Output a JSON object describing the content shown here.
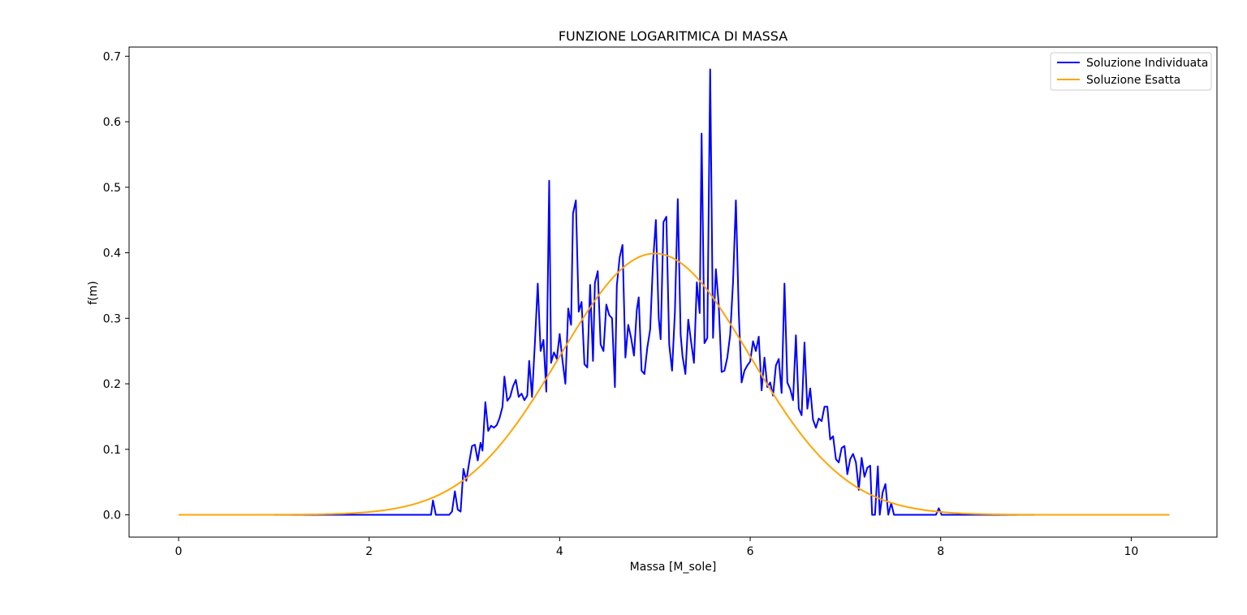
{
  "chart_data": {
    "type": "line",
    "title": "FUNZIONE LOGARITMICA DI MASSA",
    "xlabel": "Massa [M_sole]",
    "ylabel": "f(m)",
    "xlim": [
      -0.52,
      10.9
    ],
    "ylim": [
      -0.034,
      0.714
    ],
    "xticks": [
      0,
      2,
      4,
      6,
      8,
      10
    ],
    "yticks": [
      0.0,
      0.1,
      0.2,
      0.3,
      0.4,
      0.5,
      0.6,
      0.7
    ],
    "xtick_labels": [
      "0",
      "2",
      "4",
      "6",
      "8",
      "10"
    ],
    "ytick_labels": [
      "0.0",
      "0.1",
      "0.2",
      "0.3",
      "0.4",
      "0.5",
      "0.6",
      "0.7"
    ],
    "grid": false,
    "legend_position": "top-right",
    "series": [
      {
        "name": "Soluzione Individuata",
        "color": "#0000ff",
        "points": [
          [
            0.0,
            0.0
          ],
          [
            2.65,
            0.0
          ],
          [
            2.67,
            0.022
          ],
          [
            2.7,
            0.0
          ],
          [
            2.84,
            0.0
          ],
          [
            2.87,
            0.005
          ],
          [
            2.9,
            0.036
          ],
          [
            2.93,
            0.008
          ],
          [
            2.96,
            0.005
          ],
          [
            2.99,
            0.07
          ],
          [
            3.02,
            0.052
          ],
          [
            3.05,
            0.08
          ],
          [
            3.08,
            0.105
          ],
          [
            3.11,
            0.107
          ],
          [
            3.14,
            0.083
          ],
          [
            3.17,
            0.11
          ],
          [
            3.19,
            0.098
          ],
          [
            3.22,
            0.172
          ],
          [
            3.25,
            0.128
          ],
          [
            3.28,
            0.136
          ],
          [
            3.31,
            0.133
          ],
          [
            3.34,
            0.137
          ],
          [
            3.37,
            0.148
          ],
          [
            3.4,
            0.165
          ],
          [
            3.42,
            0.211
          ],
          [
            3.45,
            0.174
          ],
          [
            3.48,
            0.18
          ],
          [
            3.51,
            0.196
          ],
          [
            3.54,
            0.206
          ],
          [
            3.57,
            0.18
          ],
          [
            3.6,
            0.185
          ],
          [
            3.63,
            0.175
          ],
          [
            3.66,
            0.182
          ],
          [
            3.68,
            0.235
          ],
          [
            3.71,
            0.18
          ],
          [
            3.74,
            0.262
          ],
          [
            3.77,
            0.353
          ],
          [
            3.8,
            0.25
          ],
          [
            3.83,
            0.267
          ],
          [
            3.86,
            0.188
          ],
          [
            3.89,
            0.51
          ],
          [
            3.91,
            0.232
          ],
          [
            3.94,
            0.248
          ],
          [
            3.97,
            0.238
          ],
          [
            4.0,
            0.276
          ],
          [
            4.03,
            0.235
          ],
          [
            4.06,
            0.2
          ],
          [
            4.09,
            0.315
          ],
          [
            4.12,
            0.29
          ],
          [
            4.14,
            0.46
          ],
          [
            4.17,
            0.48
          ],
          [
            4.2,
            0.31
          ],
          [
            4.23,
            0.325
          ],
          [
            4.26,
            0.23
          ],
          [
            4.29,
            0.225
          ],
          [
            4.32,
            0.351
          ],
          [
            4.35,
            0.235
          ],
          [
            4.37,
            0.354
          ],
          [
            4.4,
            0.372
          ],
          [
            4.43,
            0.26
          ],
          [
            4.46,
            0.25
          ],
          [
            4.49,
            0.321
          ],
          [
            4.52,
            0.305
          ],
          [
            4.55,
            0.3
          ],
          [
            4.58,
            0.195
          ],
          [
            4.6,
            0.35
          ],
          [
            4.63,
            0.393
          ],
          [
            4.66,
            0.412
          ],
          [
            4.69,
            0.24
          ],
          [
            4.72,
            0.29
          ],
          [
            4.75,
            0.27
          ],
          [
            4.78,
            0.243
          ],
          [
            4.81,
            0.313
          ],
          [
            4.83,
            0.332
          ],
          [
            4.86,
            0.22
          ],
          [
            4.89,
            0.215
          ],
          [
            4.92,
            0.255
          ],
          [
            4.95,
            0.283
          ],
          [
            4.98,
            0.385
          ],
          [
            5.01,
            0.45
          ],
          [
            5.04,
            0.3
          ],
          [
            5.06,
            0.268
          ],
          [
            5.09,
            0.447
          ],
          [
            5.12,
            0.455
          ],
          [
            5.15,
            0.26
          ],
          [
            5.18,
            0.22
          ],
          [
            5.21,
            0.31
          ],
          [
            5.24,
            0.482
          ],
          [
            5.27,
            0.275
          ],
          [
            5.29,
            0.242
          ],
          [
            5.32,
            0.215
          ],
          [
            5.35,
            0.298
          ],
          [
            5.38,
            0.264
          ],
          [
            5.41,
            0.232
          ],
          [
            5.44,
            0.355
          ],
          [
            5.47,
            0.308
          ],
          [
            5.49,
            0.582
          ],
          [
            5.52,
            0.262
          ],
          [
            5.55,
            0.27
          ],
          [
            5.58,
            0.68
          ],
          [
            5.61,
            0.27
          ],
          [
            5.64,
            0.375
          ],
          [
            5.67,
            0.32
          ],
          [
            5.7,
            0.218
          ],
          [
            5.73,
            0.22
          ],
          [
            5.76,
            0.24
          ],
          [
            5.79,
            0.275
          ],
          [
            5.82,
            0.355
          ],
          [
            5.85,
            0.48
          ],
          [
            5.88,
            0.31
          ],
          [
            5.91,
            0.202
          ],
          [
            5.94,
            0.22
          ],
          [
            5.97,
            0.228
          ],
          [
            6.0,
            0.234
          ],
          [
            6.03,
            0.265
          ],
          [
            6.06,
            0.25
          ],
          [
            6.09,
            0.272
          ],
          [
            6.12,
            0.19
          ],
          [
            6.15,
            0.24
          ],
          [
            6.18,
            0.195
          ],
          [
            6.21,
            0.202
          ],
          [
            6.24,
            0.182
          ],
          [
            6.27,
            0.228
          ],
          [
            6.3,
            0.238
          ],
          [
            6.33,
            0.186
          ],
          [
            6.36,
            0.353
          ],
          [
            6.39,
            0.202
          ],
          [
            6.42,
            0.192
          ],
          [
            6.45,
            0.175
          ],
          [
            6.48,
            0.274
          ],
          [
            6.51,
            0.162
          ],
          [
            6.54,
            0.152
          ],
          [
            6.57,
            0.263
          ],
          [
            6.6,
            0.162
          ],
          [
            6.63,
            0.193
          ],
          [
            6.66,
            0.145
          ],
          [
            6.69,
            0.133
          ],
          [
            6.72,
            0.147
          ],
          [
            6.75,
            0.143
          ],
          [
            6.78,
            0.165
          ],
          [
            6.81,
            0.165
          ],
          [
            6.84,
            0.115
          ],
          [
            6.87,
            0.12
          ],
          [
            6.9,
            0.085
          ],
          [
            6.93,
            0.08
          ],
          [
            6.96,
            0.102
          ],
          [
            6.99,
            0.105
          ],
          [
            7.02,
            0.062
          ],
          [
            7.05,
            0.085
          ],
          [
            7.08,
            0.093
          ],
          [
            7.11,
            0.08
          ],
          [
            7.14,
            0.038
          ],
          [
            7.17,
            0.087
          ],
          [
            7.2,
            0.058
          ],
          [
            7.23,
            0.072
          ],
          [
            7.26,
            0.075
          ],
          [
            7.28,
            0.0
          ],
          [
            7.31,
            0.0
          ],
          [
            7.34,
            0.074
          ],
          [
            7.36,
            0.0
          ],
          [
            7.39,
            0.034
          ],
          [
            7.42,
            0.047
          ],
          [
            7.45,
            0.0
          ],
          [
            7.48,
            0.018
          ],
          [
            7.51,
            0.0
          ],
          [
            7.95,
            0.0
          ],
          [
            7.98,
            0.01
          ],
          [
            8.01,
            0.0
          ],
          [
            10.4,
            0.0
          ]
        ]
      },
      {
        "name": "Soluzione Esatta",
        "color": "#ffa500",
        "mean": 5.0,
        "std": 1.0,
        "x_range": [
          0.0,
          10.4
        ]
      }
    ]
  }
}
